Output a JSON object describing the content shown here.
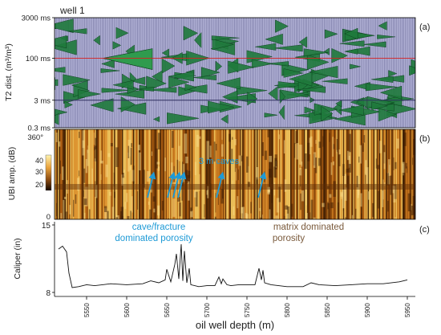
{
  "figure": {
    "well_label": "well 1"
  },
  "chart_data": [
    {
      "panel": "(a)",
      "type": "area",
      "ylabel": "T2  dist. (m³/m³)",
      "y_scale": "log",
      "y_ticks": [
        "3000 ms",
        "100 ms",
        "3 ms",
        "0.3 ms"
      ],
      "y_tick_values": [
        3000,
        100,
        3,
        0.3
      ],
      "reference_lines": [
        {
          "value": 100,
          "color": "#d62020"
        },
        {
          "value": 3,
          "color": "#303060"
        }
      ],
      "xlim": [
        5510,
        5960
      ],
      "fill_color": "#1f7a3c",
      "background_color": "#b4b4d8"
    },
    {
      "panel": "(b)",
      "type": "heatmap",
      "ylabel": "UBI amp. (dB)",
      "y_ticks": [
        "360°",
        "0"
      ],
      "colorbar_ticks": [
        40,
        30,
        20
      ],
      "annotation": "3 m caves",
      "annotation_color": "#1e9ad6",
      "arrow_depths": [
        5630,
        5655,
        5662,
        5668,
        5716,
        5768
      ],
      "xlim": [
        5510,
        5960
      ]
    },
    {
      "panel": "(c)",
      "type": "line",
      "ylabel": "Caliper (in)",
      "ylim": [
        8,
        15
      ],
      "y_ticks": [
        15,
        8
      ],
      "xlabel": "oil well depth (m)",
      "x_ticks": [
        5550,
        5600,
        5650,
        5700,
        5750,
        5800,
        5850,
        5900,
        5950
      ],
      "xlim": [
        5510,
        5960
      ],
      "annotations": [
        {
          "text": "cave/fracture",
          "color": "#1e9ad6"
        },
        {
          "text": "dominated porosity",
          "color": "#1e9ad6"
        },
        {
          "text": "matrix dominated",
          "color": "#7a5a3c"
        },
        {
          "text": "porosity",
          "color": "#7a5a3c"
        }
      ],
      "series": [
        {
          "x": [
            5515,
            5520,
            5525,
            5528,
            5532,
            5540,
            5550,
            5560,
            5580,
            5600,
            5620,
            5630,
            5640,
            5648,
            5650,
            5655,
            5660,
            5662,
            5665,
            5668,
            5670,
            5672,
            5675,
            5678,
            5680,
            5690,
            5700,
            5710,
            5715,
            5718,
            5720,
            5725,
            5730,
            5740,
            5760,
            5765,
            5768,
            5770,
            5772,
            5780,
            5800,
            5820,
            5830,
            5840,
            5860,
            5880,
            5900,
            5920,
            5940,
            5950
          ],
          "y": [
            12.5,
            12.8,
            12.2,
            10.0,
            8.5,
            8.6,
            8.8,
            8.7,
            8.9,
            8.8,
            8.9,
            9.2,
            9.0,
            9.3,
            10.4,
            9.1,
            10.9,
            12.0,
            9.4,
            13.0,
            9.2,
            12.3,
            9.0,
            10.5,
            8.8,
            8.6,
            8.7,
            8.7,
            9.6,
            8.9,
            9.4,
            8.8,
            8.7,
            8.8,
            8.8,
            10.5,
            9.3,
            10.3,
            9.0,
            8.8,
            8.6,
            8.6,
            9.0,
            8.8,
            8.7,
            8.8,
            8.9,
            8.9,
            9.1,
            9.3
          ]
        }
      ]
    }
  ]
}
